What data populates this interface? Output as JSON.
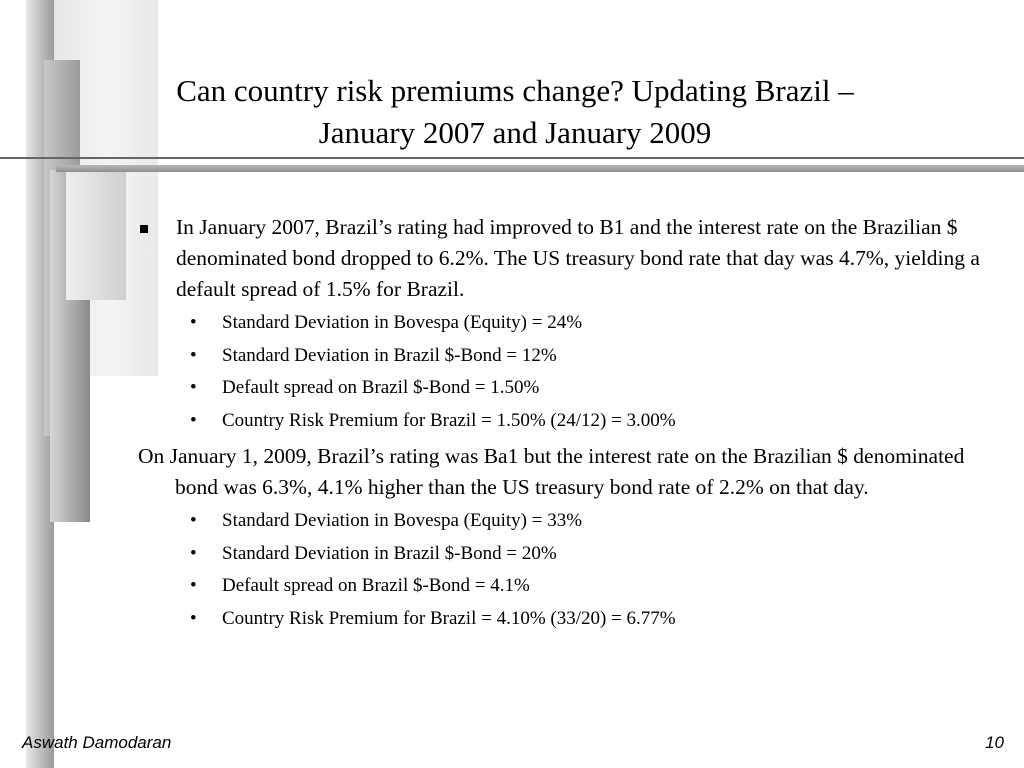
{
  "slide": {
    "title_line1": "Can country risk premiums change? Updating Brazil –",
    "title_line2": "January 2007 and January 2009",
    "bullet1": {
      "text": "In January 2007, Brazil’s rating had improved to B1 and the interest rate on the Brazilian $ denominated bond dropped to 6.2%. The US treasury bond rate that day was 4.7%, yielding a default spread of 1.5% for Brazil.",
      "subitems": [
        "Standard Deviation in Bovespa (Equity) = 24%",
        "Standard Deviation in Brazil $-Bond = 12%",
        "Default spread on Brazil $-Bond = 1.50%",
        "Country Risk Premium for Brazil = 1.50% (24/12) =  3.00%"
      ]
    },
    "paragraph2": {
      "text": "On January 1, 2009, Brazil’s rating was Ba1 but the interest rate on the Brazilian $ denominated bond was 6.3%, 4.1%  higher than the US treasury bond rate of 2.2% on that day.",
      "subitems": [
        "Standard Deviation in Bovespa (Equity) = 33%",
        "Standard Deviation in Brazil $-Bond = 20%",
        "Default spread on Brazil $-Bond = 4.1%",
        "Country Risk Premium for Brazil = 4.10% (33/20) =  6.77%"
      ]
    },
    "bullet_glyph": "•"
  },
  "footer": {
    "author": "Aswath Damodaran",
    "page_number": "10"
  }
}
